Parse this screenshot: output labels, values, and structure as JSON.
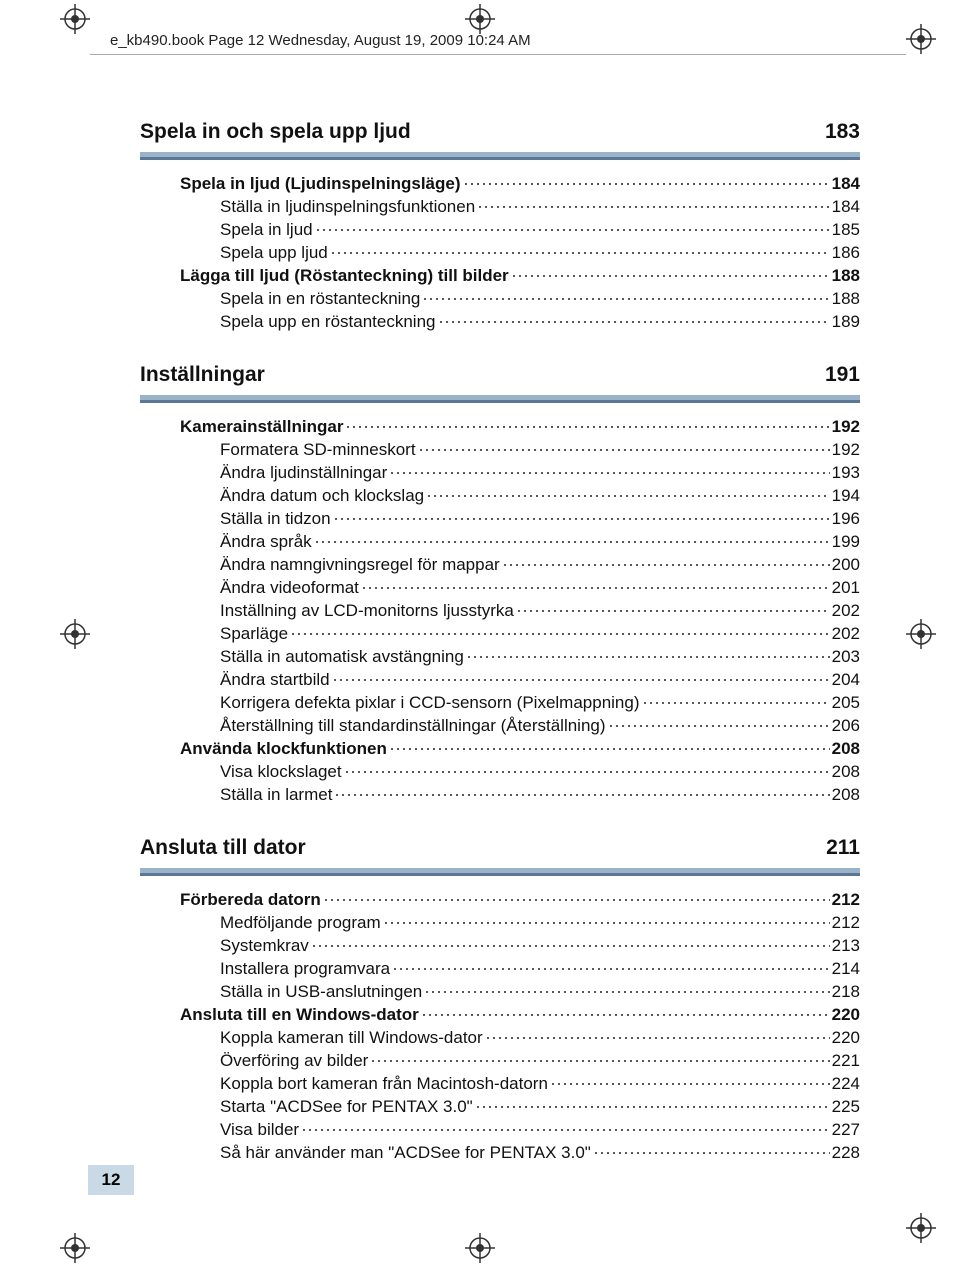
{
  "runhead": "e_kb490.book  Page 12  Wednesday, August 19, 2009  10:24 AM",
  "page_number": "12",
  "colors": {
    "bar_light": "#9bb3c9",
    "bar_dark": "#5a7896",
    "pagebox_bg": "#c9d9e6",
    "text": "#111111"
  },
  "sections": [
    {
      "title": "Spela in och spela upp ljud",
      "page": "183",
      "entries": [
        {
          "level": 1,
          "label": "Spela in ljud (Ljudinspelningsläge)",
          "page": "184"
        },
        {
          "level": 2,
          "label": "Ställa in ljudinspelningsfunktionen",
          "page": "184"
        },
        {
          "level": 2,
          "label": "Spela in ljud",
          "page": "185"
        },
        {
          "level": 2,
          "label": "Spela upp ljud",
          "page": "186"
        },
        {
          "level": 1,
          "label": "Lägga till ljud (Röstanteckning) till bilder",
          "page": "188"
        },
        {
          "level": 2,
          "label": "Spela in en röstanteckning",
          "page": "188"
        },
        {
          "level": 2,
          "label": "Spela upp en röstanteckning",
          "page": "189"
        }
      ]
    },
    {
      "title": "Inställningar",
      "page": "191",
      "entries": [
        {
          "level": 1,
          "label": "Kamerainställningar",
          "page": "192"
        },
        {
          "level": 2,
          "label": "Formatera SD-minneskort",
          "page": "192"
        },
        {
          "level": 2,
          "label": "Ändra ljudinställningar",
          "page": "193"
        },
        {
          "level": 2,
          "label": "Ändra datum och klockslag",
          "page": "194"
        },
        {
          "level": 2,
          "label": "Ställa in tidzon",
          "page": "196"
        },
        {
          "level": 2,
          "label": "Ändra språk ",
          "page": "199"
        },
        {
          "level": 2,
          "label": "Ändra namngivningsregel för mappar",
          "page": "200"
        },
        {
          "level": 2,
          "label": "Ändra videoformat",
          "page": "201"
        },
        {
          "level": 2,
          "label": "Inställning av LCD-monitorns ljusstyrka",
          "page": "202"
        },
        {
          "level": 2,
          "label": "Sparläge",
          "page": "202"
        },
        {
          "level": 2,
          "label": "Ställa in automatisk avstängning",
          "page": "203"
        },
        {
          "level": 2,
          "label": "Ändra startbild",
          "page": "204"
        },
        {
          "level": 2,
          "label": "Korrigera defekta pixlar i CCD-sensorn (Pixelmappning)",
          "page": "205"
        },
        {
          "level": 2,
          "label": "Återställning till standardinställningar (Återställning)",
          "page": "206"
        },
        {
          "level": 1,
          "label": "Använda klockfunktionen",
          "page": "208"
        },
        {
          "level": 2,
          "label": "Visa klockslaget",
          "page": "208"
        },
        {
          "level": 2,
          "label": "Ställa in larmet",
          "page": "208"
        }
      ]
    },
    {
      "title": "Ansluta till dator",
      "page": "211",
      "entries": [
        {
          "level": 1,
          "label": "Förbereda datorn",
          "page": "212"
        },
        {
          "level": 2,
          "label": "Medföljande program",
          "page": "212"
        },
        {
          "level": 2,
          "label": "Systemkrav",
          "page": "213"
        },
        {
          "level": 2,
          "label": "Installera programvara",
          "page": "214"
        },
        {
          "level": 2,
          "label": "Ställa in USB-anslutningen",
          "page": "218"
        },
        {
          "level": 1,
          "label": "Ansluta till en Windows-dator",
          "page": "220"
        },
        {
          "level": 2,
          "label": "Koppla kameran till Windows-dator",
          "page": "220"
        },
        {
          "level": 2,
          "label": "Överföring av bilder",
          "page": "221"
        },
        {
          "level": 2,
          "label": "Koppla bort kameran från Macintosh-datorn",
          "page": "224"
        },
        {
          "level": 2,
          "label": "Starta \"ACDSee for PENTAX 3.0\"",
          "page": "225"
        },
        {
          "level": 2,
          "label": "Visa bilder",
          "page": "227"
        },
        {
          "level": 2,
          "label": "Så här använder man \"ACDSee for PENTAX 3.0\"",
          "page": "228"
        }
      ]
    }
  ]
}
